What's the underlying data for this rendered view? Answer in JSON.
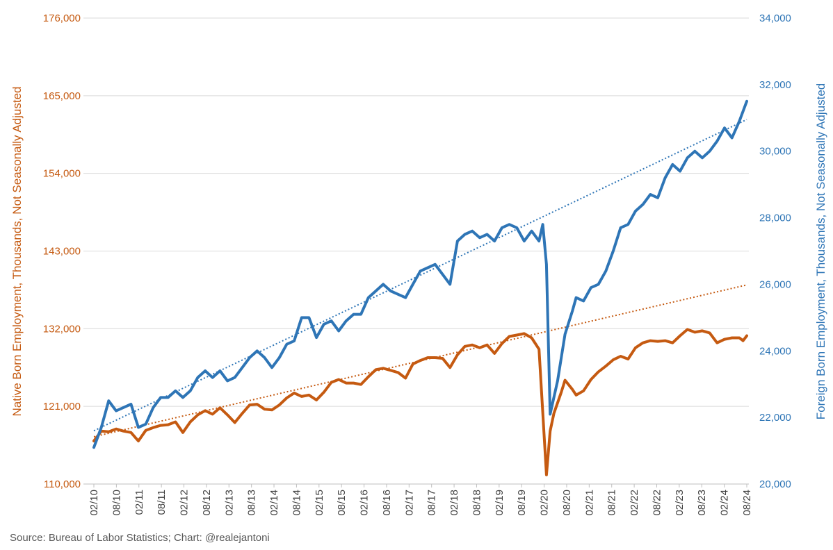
{
  "chart_data": {
    "type": "line",
    "left_axis": {
      "label": "Native Born Employment, Thousands, Not Seasonally Adjusted",
      "ticks": [
        "110,000",
        "121,000",
        "132,000",
        "143,000",
        "154,000",
        "165,000",
        "176,000"
      ],
      "range": [
        110000,
        176000
      ],
      "color": "#C55A11"
    },
    "right_axis": {
      "label": "Foreign Born Employment, Thousands, Not Seasonally Adjusted",
      "ticks": [
        "20,000",
        "22,000",
        "24,000",
        "26,000",
        "28,000",
        "30,000",
        "32,000",
        "34,000"
      ],
      "range": [
        20000,
        34000
      ],
      "color": "#2E75B6"
    },
    "x_tick_labels": [
      "02/10",
      "08/10",
      "02/11",
      "08/11",
      "02/12",
      "08/12",
      "02/13",
      "08/13",
      "02/14",
      "08/14",
      "02/15",
      "08/15",
      "02/16",
      "08/16",
      "02/17",
      "08/17",
      "02/18",
      "08/18",
      "02/19",
      "08/19",
      "02/20",
      "08/20",
      "02/21",
      "08/21",
      "02/22",
      "08/22",
      "02/23",
      "08/23",
      "02/24",
      "08/24"
    ],
    "grid": true,
    "series": [
      {
        "axis": "left",
        "color": "#C55A11",
        "trendline": {
          "style": "dotted",
          "start": 116700,
          "end": 138200
        },
        "points": [
          [
            "2010-02",
            116100
          ],
          [
            "2010-04",
            117500
          ],
          [
            "2010-06",
            117400
          ],
          [
            "2010-08",
            117800
          ],
          [
            "2010-10",
            117500
          ],
          [
            "2010-12",
            117300
          ],
          [
            "2011-02",
            116100
          ],
          [
            "2011-04",
            117600
          ],
          [
            "2011-06",
            118000
          ],
          [
            "2011-08",
            118300
          ],
          [
            "2011-10",
            118400
          ],
          [
            "2011-12",
            118800
          ],
          [
            "2012-02",
            117300
          ],
          [
            "2012-04",
            118800
          ],
          [
            "2012-06",
            119800
          ],
          [
            "2012-08",
            120400
          ],
          [
            "2012-10",
            119900
          ],
          [
            "2012-12",
            120800
          ],
          [
            "2013-02",
            119800
          ],
          [
            "2013-04",
            118700
          ],
          [
            "2013-06",
            120000
          ],
          [
            "2013-08",
            121200
          ],
          [
            "2013-10",
            121300
          ],
          [
            "2013-12",
            120600
          ],
          [
            "2014-02",
            120500
          ],
          [
            "2014-04",
            121200
          ],
          [
            "2014-06",
            122200
          ],
          [
            "2014-08",
            122900
          ],
          [
            "2014-10",
            122400
          ],
          [
            "2014-12",
            122600
          ],
          [
            "2015-02",
            121900
          ],
          [
            "2015-04",
            123000
          ],
          [
            "2015-06",
            124400
          ],
          [
            "2015-08",
            124800
          ],
          [
            "2015-10",
            124300
          ],
          [
            "2015-12",
            124300
          ],
          [
            "2016-02",
            124100
          ],
          [
            "2016-04",
            125200
          ],
          [
            "2016-06",
            126200
          ],
          [
            "2016-08",
            126400
          ],
          [
            "2016-10",
            126100
          ],
          [
            "2016-12",
            125800
          ],
          [
            "2017-02",
            125000
          ],
          [
            "2017-04",
            127000
          ],
          [
            "2017-06",
            127500
          ],
          [
            "2017-08",
            127900
          ],
          [
            "2017-10",
            127900
          ],
          [
            "2017-12",
            127800
          ],
          [
            "2018-02",
            126500
          ],
          [
            "2018-04",
            128300
          ],
          [
            "2018-06",
            129500
          ],
          [
            "2018-08",
            129700
          ],
          [
            "2018-10",
            129300
          ],
          [
            "2018-12",
            129700
          ],
          [
            "2019-02",
            128500
          ],
          [
            "2019-04",
            129900
          ],
          [
            "2019-06",
            130900
          ],
          [
            "2019-08",
            131100
          ],
          [
            "2019-10",
            131300
          ],
          [
            "2019-12",
            130700
          ],
          [
            "2020-02",
            129100
          ],
          [
            "2020-04",
            111300
          ],
          [
            "2020-05",
            117500
          ],
          [
            "2020-06",
            120000
          ],
          [
            "2020-08",
            123000
          ],
          [
            "2020-09",
            124700
          ],
          [
            "2020-11",
            123400
          ],
          [
            "2020-12",
            122600
          ],
          [
            "2021-02",
            123200
          ],
          [
            "2021-04",
            124800
          ],
          [
            "2021-06",
            125900
          ],
          [
            "2021-08",
            126700
          ],
          [
            "2021-10",
            127600
          ],
          [
            "2021-12",
            128100
          ],
          [
            "2022-02",
            127700
          ],
          [
            "2022-04",
            129300
          ],
          [
            "2022-06",
            130000
          ],
          [
            "2022-08",
            130300
          ],
          [
            "2022-10",
            130200
          ],
          [
            "2022-12",
            130300
          ],
          [
            "2023-02",
            130000
          ],
          [
            "2023-04",
            131000
          ],
          [
            "2023-06",
            131900
          ],
          [
            "2023-08",
            131500
          ],
          [
            "2023-10",
            131700
          ],
          [
            "2023-12",
            131400
          ],
          [
            "2024-02",
            130000
          ],
          [
            "2024-04",
            130500
          ],
          [
            "2024-06",
            130700
          ],
          [
            "2024-08",
            130700
          ],
          [
            "2024-09",
            130300
          ],
          [
            "2024-10",
            131000
          ]
        ]
      },
      {
        "axis": "right",
        "color": "#2E75B6",
        "trendline": {
          "style": "dotted",
          "start": 21600,
          "end": 30950
        },
        "points": [
          [
            "2010-02",
            21100
          ],
          [
            "2010-04",
            21700
          ],
          [
            "2010-06",
            22500
          ],
          [
            "2010-08",
            22200
          ],
          [
            "2010-10",
            22300
          ],
          [
            "2010-12",
            22400
          ],
          [
            "2011-02",
            21700
          ],
          [
            "2011-04",
            21800
          ],
          [
            "2011-06",
            22300
          ],
          [
            "2011-08",
            22600
          ],
          [
            "2011-10",
            22600
          ],
          [
            "2011-12",
            22800
          ],
          [
            "2012-02",
            22600
          ],
          [
            "2012-04",
            22800
          ],
          [
            "2012-06",
            23200
          ],
          [
            "2012-08",
            23400
          ],
          [
            "2012-10",
            23200
          ],
          [
            "2012-12",
            23400
          ],
          [
            "2013-02",
            23100
          ],
          [
            "2013-04",
            23200
          ],
          [
            "2013-06",
            23500
          ],
          [
            "2013-08",
            23800
          ],
          [
            "2013-10",
            24000
          ],
          [
            "2013-12",
            23800
          ],
          [
            "2014-02",
            23500
          ],
          [
            "2014-04",
            23800
          ],
          [
            "2014-06",
            24200
          ],
          [
            "2014-08",
            24300
          ],
          [
            "2014-10",
            25000
          ],
          [
            "2014-12",
            25000
          ],
          [
            "2015-02",
            24400
          ],
          [
            "2015-04",
            24800
          ],
          [
            "2015-06",
            24900
          ],
          [
            "2015-08",
            24600
          ],
          [
            "2015-10",
            24900
          ],
          [
            "2015-12",
            25100
          ],
          [
            "2016-02",
            25100
          ],
          [
            "2016-04",
            25600
          ],
          [
            "2016-06",
            25800
          ],
          [
            "2016-08",
            26000
          ],
          [
            "2016-10",
            25800
          ],
          [
            "2016-12",
            25700
          ],
          [
            "2017-02",
            25600
          ],
          [
            "2017-04",
            26000
          ],
          [
            "2017-06",
            26400
          ],
          [
            "2017-08",
            26500
          ],
          [
            "2017-10",
            26600
          ],
          [
            "2017-12",
            26300
          ],
          [
            "2018-02",
            26000
          ],
          [
            "2018-04",
            27300
          ],
          [
            "2018-06",
            27500
          ],
          [
            "2018-08",
            27600
          ],
          [
            "2018-10",
            27400
          ],
          [
            "2018-12",
            27500
          ],
          [
            "2019-02",
            27300
          ],
          [
            "2019-04",
            27700
          ],
          [
            "2019-06",
            27800
          ],
          [
            "2019-08",
            27700
          ],
          [
            "2019-10",
            27300
          ],
          [
            "2019-12",
            27600
          ],
          [
            "2020-02",
            27300
          ],
          [
            "2020-03",
            27800
          ],
          [
            "2020-04",
            26600
          ],
          [
            "2020-05",
            22100
          ],
          [
            "2020-07",
            23100
          ],
          [
            "2020-09",
            24500
          ],
          [
            "2020-11",
            25200
          ],
          [
            "2020-12",
            25600
          ],
          [
            "2021-02",
            25500
          ],
          [
            "2021-04",
            25900
          ],
          [
            "2021-06",
            26000
          ],
          [
            "2021-08",
            26400
          ],
          [
            "2021-10",
            27000
          ],
          [
            "2021-12",
            27700
          ],
          [
            "2022-02",
            27800
          ],
          [
            "2022-04",
            28200
          ],
          [
            "2022-06",
            28400
          ],
          [
            "2022-08",
            28700
          ],
          [
            "2022-10",
            28600
          ],
          [
            "2022-12",
            29200
          ],
          [
            "2023-02",
            29600
          ],
          [
            "2023-04",
            29400
          ],
          [
            "2023-06",
            29800
          ],
          [
            "2023-08",
            30000
          ],
          [
            "2023-10",
            29800
          ],
          [
            "2023-12",
            30000
          ],
          [
            "2024-02",
            30300
          ],
          [
            "2024-04",
            30700
          ],
          [
            "2024-06",
            30400
          ],
          [
            "2024-08",
            30900
          ],
          [
            "2024-10",
            31500
          ]
        ]
      }
    ]
  },
  "footer": {
    "source": "Source: Bureau of Labor Statistics; Chart: @realejantoni"
  }
}
